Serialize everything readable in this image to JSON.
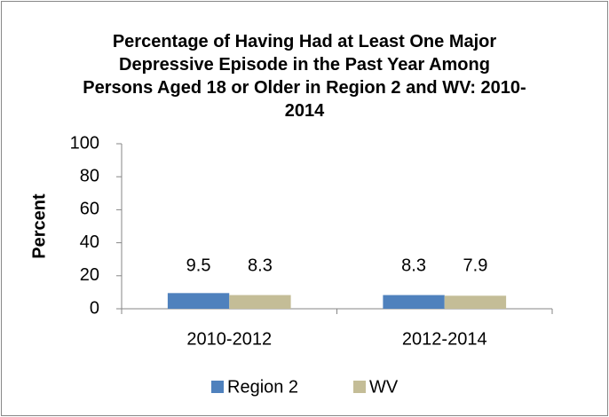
{
  "chart_data": {
    "type": "bar",
    "title": "Percentage of Having Had at Least One Major Depressive Episode in the Past Year Among Persons Aged 18 or Older in Region 2 and WV: 2010-2014",
    "y_label": "Percent",
    "categories": [
      "2010-2012",
      "2012-2014"
    ],
    "series": [
      {
        "name": "Region 2",
        "color": "#4f81bd",
        "values": [
          9.5,
          8.3
        ]
      },
      {
        "name": "WV",
        "color": "#c4bd97",
        "values": [
          8.3,
          7.9
        ]
      }
    ],
    "ylim": [
      0,
      100
    ],
    "yticks": [
      0,
      20,
      40,
      60,
      80,
      100
    ],
    "legend": "bottom"
  }
}
